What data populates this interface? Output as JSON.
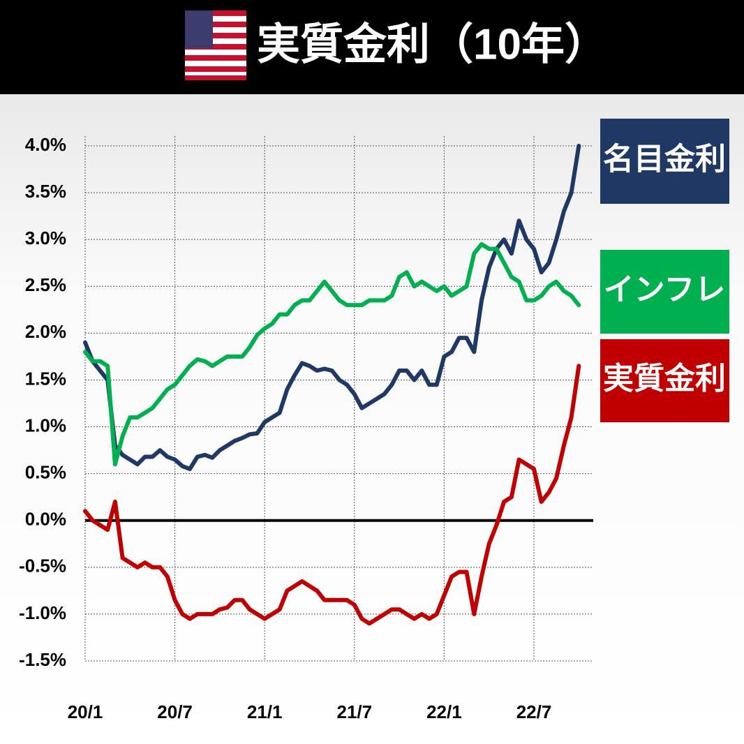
{
  "chart_data": {
    "type": "line",
    "title": "実質金利（10年）",
    "categories": [
      "20/1",
      null,
      null,
      null,
      null,
      null,
      null,
      null,
      null,
      null,
      null,
      null,
      "20/7",
      null,
      null,
      null,
      null,
      null,
      null,
      null,
      null,
      null,
      null,
      null,
      "21/1",
      null,
      null,
      null,
      null,
      null,
      null,
      null,
      null,
      null,
      null,
      null,
      "21/7",
      null,
      null,
      null,
      null,
      null,
      null,
      null,
      null,
      null,
      null,
      null,
      "22/1",
      null,
      null,
      null,
      null,
      null,
      null,
      null,
      null,
      null,
      null,
      null,
      "22/7",
      null,
      null,
      null,
      null,
      null,
      null
    ],
    "series": [
      {
        "name": "名目金利",
        "color": "#1f3864",
        "values": [
          1.9,
          1.7,
          1.6,
          1.5,
          0.8,
          0.7,
          0.65,
          0.6,
          0.68,
          0.68,
          0.75,
          0.68,
          0.65,
          0.58,
          0.55,
          0.68,
          0.7,
          0.67,
          0.75,
          0.8,
          0.85,
          0.88,
          0.92,
          0.93,
          1.05,
          1.1,
          1.15,
          1.4,
          1.55,
          1.68,
          1.65,
          1.6,
          1.62,
          1.6,
          1.5,
          1.45,
          1.35,
          1.2,
          1.25,
          1.3,
          1.35,
          1.45,
          1.6,
          1.6,
          1.5,
          1.6,
          1.45,
          1.45,
          1.75,
          1.8,
          1.95,
          1.95,
          1.8,
          2.35,
          2.7,
          2.9,
          3.0,
          2.85,
          3.2,
          3.0,
          2.9,
          2.65,
          2.75,
          3.0,
          3.3,
          3.5,
          4.0
        ]
      },
      {
        "name": "インフレ",
        "color": "#00b050",
        "values": [
          1.8,
          1.7,
          1.7,
          1.65,
          0.6,
          0.9,
          1.1,
          1.1,
          1.15,
          1.2,
          1.3,
          1.4,
          1.45,
          1.55,
          1.65,
          1.72,
          1.7,
          1.65,
          1.7,
          1.75,
          1.75,
          1.75,
          1.85,
          1.98,
          2.05,
          2.1,
          2.2,
          2.2,
          2.3,
          2.35,
          2.35,
          2.45,
          2.55,
          2.45,
          2.35,
          2.3,
          2.3,
          2.3,
          2.35,
          2.35,
          2.35,
          2.4,
          2.6,
          2.65,
          2.5,
          2.55,
          2.5,
          2.45,
          2.5,
          2.4,
          2.45,
          2.5,
          2.85,
          2.95,
          2.9,
          2.9,
          2.75,
          2.6,
          2.55,
          2.35,
          2.35,
          2.4,
          2.5,
          2.55,
          2.45,
          2.4,
          2.3
        ]
      },
      {
        "name": "実質金利",
        "color": "#c00000",
        "values": [
          0.1,
          0.0,
          -0.05,
          -0.1,
          0.2,
          -0.4,
          -0.45,
          -0.5,
          -0.45,
          -0.5,
          -0.5,
          -0.6,
          -0.85,
          -1.0,
          -1.05,
          -1.0,
          -1.0,
          -1.0,
          -0.95,
          -0.93,
          -0.85,
          -0.85,
          -0.95,
          -1.0,
          -1.05,
          -1.0,
          -0.95,
          -0.75,
          -0.7,
          -0.65,
          -0.7,
          -0.75,
          -0.85,
          -0.85,
          -0.85,
          -0.85,
          -0.9,
          -1.05,
          -1.1,
          -1.05,
          -1.0,
          -0.95,
          -0.95,
          -1.0,
          -1.05,
          -1.0,
          -1.05,
          -1.0,
          -0.8,
          -0.6,
          -0.55,
          -0.55,
          -1.0,
          -0.6,
          -0.25,
          -0.05,
          0.2,
          0.25,
          0.65,
          0.6,
          0.55,
          0.2,
          0.3,
          0.45,
          0.8,
          1.1,
          1.65
        ]
      }
    ],
    "ylim": [
      -1.5,
      4.0
    ],
    "yticks": [
      {
        "value": 4.0,
        "label": "4.0%"
      },
      {
        "value": 3.5,
        "label": "3.5%"
      },
      {
        "value": 3.0,
        "label": "3.0%"
      },
      {
        "value": 2.5,
        "label": "2.5%"
      },
      {
        "value": 2.0,
        "label": "2.0%"
      },
      {
        "value": 1.5,
        "label": "1.5%"
      },
      {
        "value": 1.0,
        "label": "1.0%"
      },
      {
        "value": 0.5,
        "label": "0.5%"
      },
      {
        "value": 0.0,
        "label": "0.0%"
      },
      {
        "value": -0.5,
        "label": "-0.5%"
      },
      {
        "value": -1.0,
        "label": "-1.0%"
      },
      {
        "value": -1.5,
        "label": "-1.5%"
      }
    ],
    "grid": true
  }
}
